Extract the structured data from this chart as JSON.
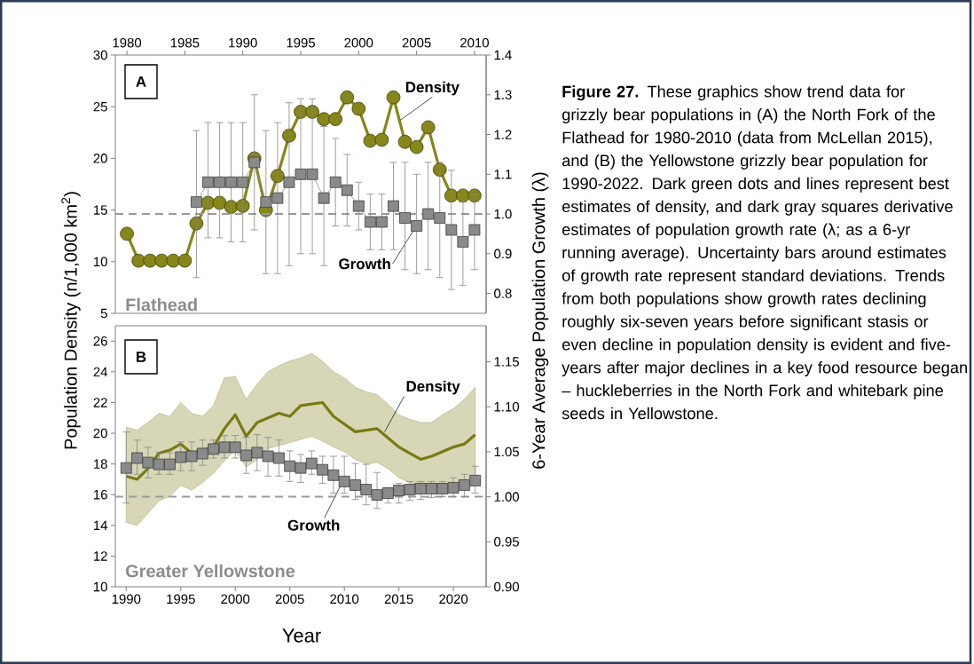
{
  "chart_data": [
    {
      "type": "line",
      "ylabel": "Population Density (n/1,000 km$^{2}$)",
      "y2label": "6-Year Average Population Growth (λ)",
      "xlim": [
        1979,
        2011
      ],
      "xticks": [
        1980,
        1985,
        1990,
        1995,
        2000,
        2005,
        2010
      ],
      "ylim": [
        5,
        30
      ],
      "yticks": [
        5,
        10,
        15,
        20,
        25,
        30
      ],
      "y2lim": [
        0.75,
        1.4
      ],
      "y2ticks": [
        0.8,
        0.9,
        {
          "value": 1.0,
          "label": "1.0"
        },
        1.1,
        1.2,
        1.3,
        1.4
      ],
      "series": [
        {
          "marker": "circle",
          "color": "#86861a",
          "x": [
            1980,
            1981,
            1982,
            1983,
            1984,
            1985,
            1986,
            1987,
            1988,
            1989,
            1990,
            1991,
            1992,
            1993,
            1994,
            1995,
            1996,
            1997,
            1998,
            1999,
            2000,
            2001,
            2002,
            2003,
            2004,
            2005,
            2006,
            2007,
            2008,
            2009,
            2010
          ],
          "values": [
            12.7,
            10.1,
            10.1,
            10.1,
            10.1,
            10.1,
            13.7,
            15.7,
            15.7,
            15.3,
            15.4,
            20.0,
            15.0,
            18.3,
            22.2,
            24.5,
            24.5,
            23.8,
            23.8,
            25.9,
            24.8,
            21.7,
            21.8,
            25.9,
            21.6,
            21.1,
            23.0,
            18.9,
            16.4,
            16.4,
            16.4
          ]
        },
        {
          "marker": "square",
          "axis": "y2",
          "color": "#8a8a8a",
          "x": [
            1986,
            1987,
            1988,
            1989,
            1990,
            1991,
            1992,
            1993,
            1994,
            1995,
            1996,
            1997,
            1998,
            1999,
            2000,
            2001,
            2002,
            2003,
            2004,
            2005,
            2006,
            2007,
            2008,
            2009,
            2010
          ],
          "values": [
            1.03,
            1.08,
            1.08,
            1.08,
            1.08,
            1.13,
            1.03,
            1.04,
            1.08,
            1.1,
            1.1,
            1.04,
            1.08,
            1.06,
            1.02,
            0.98,
            0.98,
            1.02,
            0.99,
            0.97,
            1.0,
            0.99,
            0.96,
            0.93,
            0.96
          ],
          "errors": [
            [
              0.84,
              1.21
            ],
            [
              0.94,
              1.23
            ],
            [
              0.94,
              1.23
            ],
            [
              0.93,
              1.23
            ],
            [
              0.93,
              1.23
            ],
            [
              0.96,
              1.3
            ],
            [
              0.85,
              1.21
            ],
            [
              0.85,
              1.23
            ],
            [
              0.87,
              1.28
            ],
            [
              0.9,
              1.29
            ],
            [
              0.9,
              1.29
            ],
            [
              0.87,
              1.22
            ],
            [
              0.97,
              1.19
            ],
            [
              0.97,
              1.15
            ],
            [
              0.96,
              1.08
            ],
            [
              0.91,
              1.05
            ],
            [
              0.91,
              1.05
            ],
            [
              0.91,
              1.13
            ],
            [
              0.86,
              1.13
            ],
            [
              0.85,
              1.1
            ],
            [
              0.86,
              1.13
            ],
            [
              0.84,
              1.13
            ],
            [
              0.81,
              1.11
            ],
            [
              0.82,
              1.03
            ],
            [
              0.86,
              1.05
            ]
          ]
        }
      ],
      "ref_lines": [
        {
          "axis": "y2",
          "value": 1.0,
          "line_style": "dashed",
          "color": "#9a9a9a"
        }
      ],
      "annotations": [
        "A",
        "Flathead",
        "**Figure 27.** These graphics show trend data for grizzly bear populations in (A) the North Fork of the Flathead for 1980-2010 (data from McLellan 2015), and (B) the Yellowstone grizzly bear population for 1990-2022. Dark green dots and lines represent best estimates of density, and dark gray squares derivative estimates of population growth rate (λ; as a 6-yr running average). Uncertainty bars around estimates of growth rate represent standard deviations. Trends from both populations show growth rates declining roughly six-seven years before significant stasis or even decline in population density is evident and five-years after major declines in a key food resource began – huckleberries in the North Fork and whitebark pine seeds in Yellowstone.",
        {
          "text": "Density",
          "x": 2003.6,
          "y": 23.7
        },
        {
          "text": "Growth",
          "x": 2005,
          "y": 13.5
        }
      ]
    },
    {
      "type": "line",
      "xlabel": "Year",
      "xlim": [
        1989,
        2023
      ],
      "xticks": [
        1990,
        1995,
        2000,
        2005,
        2010,
        2015,
        2020
      ],
      "ylim": [
        10,
        27
      ],
      "yticks": [
        10,
        12,
        14,
        16,
        18,
        20,
        22,
        24,
        26
      ],
      "y2lim": [
        0.9,
        1.19
      ],
      "y2ticks": [
        {
          "value": 0.9,
          "label": "0.90"
        },
        0.95,
        {
          "value": 1.0,
          "label": "1.00"
        },
        1.05,
        {
          "value": 1.1,
          "label": "1.10"
        },
        1.15
      ],
      "x": [
        1990,
        1991,
        1992,
        1993,
        1994,
        1995,
        1996,
        1997,
        1998,
        1999,
        2000,
        2001,
        2002,
        2003,
        2004,
        2005,
        2006,
        2007,
        2008,
        2009,
        2010,
        2011,
        2012,
        2013,
        2014,
        2015,
        2016,
        2017,
        2018,
        2019,
        2020,
        2021,
        2022
      ],
      "series": [
        {
          "marker": "none",
          "color": "#7a7a12",
          "values": [
            17.2,
            17.0,
            17.7,
            18.7,
            18.9,
            19.3,
            18.7,
            18.9,
            19.1,
            20.3,
            21.2,
            19.8,
            20.7,
            21.0,
            21.3,
            21.1,
            21.8,
            21.9,
            22.0,
            21.1,
            20.6,
            20.1,
            20.2,
            20.3,
            19.7,
            19.1,
            18.7,
            18.3,
            18.5,
            18.8,
            19.1,
            19.3,
            19.9
          ],
          "upper": [
            20.4,
            20.2,
            20.7,
            21.3,
            21.1,
            22.0,
            21.3,
            21.1,
            21.8,
            23.6,
            23.7,
            22.2,
            23.2,
            24.0,
            24.4,
            24.7,
            24.9,
            25.2,
            24.7,
            24.0,
            23.6,
            23.0,
            22.7,
            22.5,
            21.9,
            21.2,
            20.9,
            20.7,
            20.7,
            21.2,
            21.6,
            22.2,
            23.0
          ],
          "lower": [
            14.2,
            14.0,
            14.8,
            15.6,
            15.9,
            16.6,
            16.3,
            16.8,
            17.4,
            18.2,
            18.9,
            17.8,
            18.3,
            19.0,
            19.2,
            19.4,
            19.6,
            19.8,
            19.5,
            19.1,
            18.8,
            18.3,
            18.0,
            18.1,
            17.7,
            17.1,
            16.8,
            16.6,
            16.5,
            16.4,
            16.4,
            16.6,
            16.6
          ]
        },
        {
          "type": "scatter",
          "marker": "square",
          "axis": "y2",
          "color": "#8a8a8a",
          "values": [
            1.032,
            1.043,
            1.038,
            1.036,
            1.036,
            1.044,
            1.045,
            1.048,
            1.053,
            1.055,
            1.055,
            1.046,
            1.049,
            1.045,
            1.043,
            1.034,
            1.032,
            1.037,
            1.03,
            1.024,
            1.017,
            1.013,
            1.008,
            1.002,
            1.004,
            1.007,
            1.008,
            1.009,
            1.009,
            1.009,
            1.01,
            1.013,
            1.018
          ],
          "errors": [
            [
              0.993,
              1.072
            ],
            [
              1.025,
              1.063
            ],
            [
              1.021,
              1.055
            ],
            [
              1.025,
              1.049
            ],
            [
              1.025,
              1.049
            ],
            [
              1.029,
              1.061
            ],
            [
              1.029,
              1.061
            ],
            [
              1.035,
              1.063
            ],
            [
              1.043,
              1.063
            ],
            [
              1.043,
              1.068
            ],
            [
              1.043,
              1.068
            ],
            [
              1.026,
              1.066
            ],
            [
              1.029,
              1.069
            ],
            [
              1.023,
              1.066
            ],
            [
              1.023,
              1.063
            ],
            [
              1.017,
              1.051
            ],
            [
              1.016,
              1.047
            ],
            [
              1.025,
              1.051
            ],
            [
              1.015,
              1.045
            ],
            [
              1.004,
              1.045
            ],
            [
              1.004,
              1.045
            ],
            [
              0.997,
              1.037
            ],
            [
              0.991,
              1.036
            ],
            [
              0.987,
              1.027
            ],
            [
              0.993,
              1.01
            ],
            [
              0.993,
              1.015
            ],
            [
              0.996,
              1.017
            ],
            [
              0.997,
              1.017
            ],
            [
              0.999,
              1.017
            ],
            [
              1.0,
              1.017
            ],
            [
              1.0,
              1.021
            ],
            [
              1.0,
              1.025
            ],
            [
              1.004,
              1.034
            ]
          ]
        }
      ],
      "ref_lines": [
        {
          "axis": "y2",
          "value": 1.0,
          "line_style": "dashed",
          "color": "#9a9a9a"
        }
      ],
      "annotations": [
        "B",
        "Greater Yellowstone",
        {
          "text": "Density",
          "x": 2013.7,
          "y": 20.1
        },
        {
          "text": "Growth",
          "x": 2009.8,
          "y": 16.8
        }
      ]
    }
  ]
}
